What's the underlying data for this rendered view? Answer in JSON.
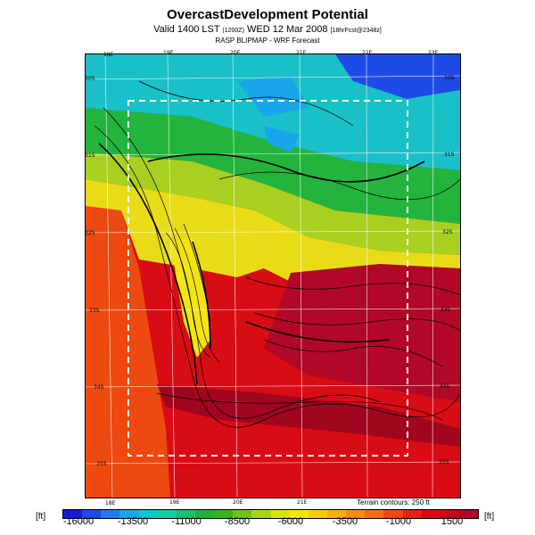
{
  "header": {
    "title": "OvercastDevelopment Potential",
    "subtitle_main": "Valid 1400 LST",
    "subtitle_small": "(1200Z)",
    "subtitle_date": "WED 12 Mar 2008",
    "subtitle_tail": "[18hrFcst@2348z]",
    "source": "RASP BLIPMAP - WRF Forecast"
  },
  "map": {
    "lon_labels_top": [
      "18E",
      "19E",
      "20E",
      "21E",
      "22E",
      "23E"
    ],
    "lon_labels_bottom": [
      "18E",
      "19E",
      "20E",
      "21E"
    ],
    "lat_labels": [
      "30S",
      "31S",
      "32S",
      "33S",
      "34S",
      "35S"
    ],
    "terrain_note": "Terrain contours: 250 ft"
  },
  "colorbar": {
    "unit_label": "[ft]",
    "tick_labels": [
      "-16000",
      "-13500",
      "-11000",
      "-8500",
      "-6000",
      "-3500",
      "-1000",
      "1500"
    ],
    "colors": [
      "#1a1ad2",
      "#1e4be6",
      "#1f7aef",
      "#18a6e8",
      "#12c4d0",
      "#18c8a4",
      "#1ac070",
      "#1db23c",
      "#36b414",
      "#6cc414",
      "#a6d41c",
      "#d8e21c",
      "#f4e414",
      "#f8c810",
      "#f8ac10",
      "#f88c10",
      "#f46c10",
      "#ec4a10",
      "#e02414",
      "#d20e14",
      "#c40a1a",
      "#b00826"
    ]
  }
}
